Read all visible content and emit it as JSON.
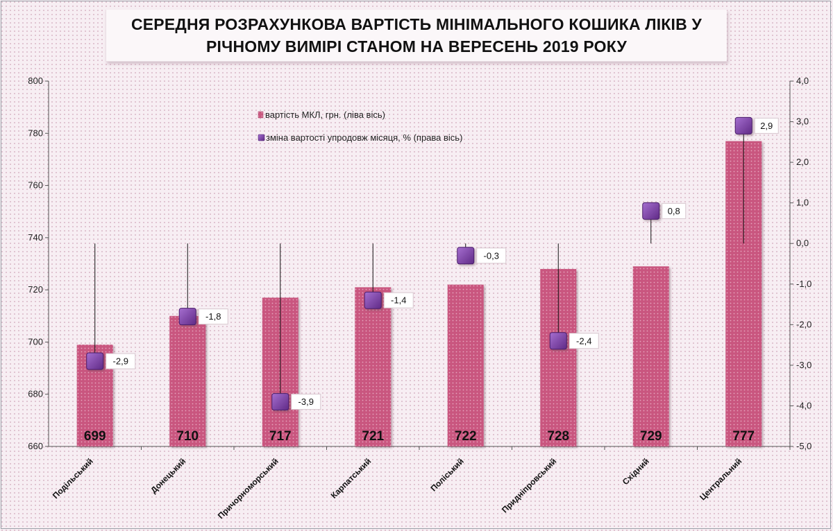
{
  "title": {
    "line1": "СЕРЕДНЯ РОЗРАХУНКОВА ВАРТІСТЬ МІНІМАЛЬНОГО  КОШИКА ЛІКІВ У",
    "line2": "РІЧНОМУ ВИМІРІ СТАНОМ НА ВЕРЕСЕНЬ 2019 РОКУ"
  },
  "chart_data": {
    "type": "bar",
    "categories": [
      "Подільський",
      "Донецький",
      "Причорноморський",
      "Карпатський",
      "Поліський",
      "Придніпровський",
      "Східний",
      "Центральний"
    ],
    "series": [
      {
        "name": "вартість МКЛ, грн. (ліва  вісь)",
        "axis": "left",
        "type": "bar",
        "color": "#c9577f",
        "values": [
          699,
          710,
          717,
          721,
          722,
          728,
          729,
          777
        ],
        "value_labels": [
          "699",
          "710",
          "717",
          "721",
          "722",
          "728",
          "729",
          "777"
        ]
      },
      {
        "name": "зміна вартості упродовж місяця, % (права вісь)",
        "axis": "right",
        "type": "marker",
        "color": "#7b3fa5",
        "values": [
          -2.9,
          -1.8,
          -3.9,
          -1.4,
          -0.3,
          -2.4,
          0.8,
          2.9
        ],
        "value_labels": [
          "-2,9",
          "-1,8",
          "-3,9",
          "-1,4",
          "-0,3",
          "-2,4",
          "0,8",
          "2,9"
        ]
      }
    ],
    "y_left": {
      "min": 660,
      "max": 800,
      "step": 20,
      "tick_labels": [
        "660",
        "680",
        "700",
        "720",
        "740",
        "760",
        "780",
        "800"
      ]
    },
    "y_right": {
      "min": -5,
      "max": 4,
      "step": 1,
      "tick_labels": [
        "-5,0",
        "-4,0",
        "-3,0",
        "-2,0",
        "-1,0",
        "0,0",
        "1,0",
        "2,0",
        "3,0",
        "4,0"
      ]
    },
    "grid": false,
    "legend_position": "top-center"
  }
}
